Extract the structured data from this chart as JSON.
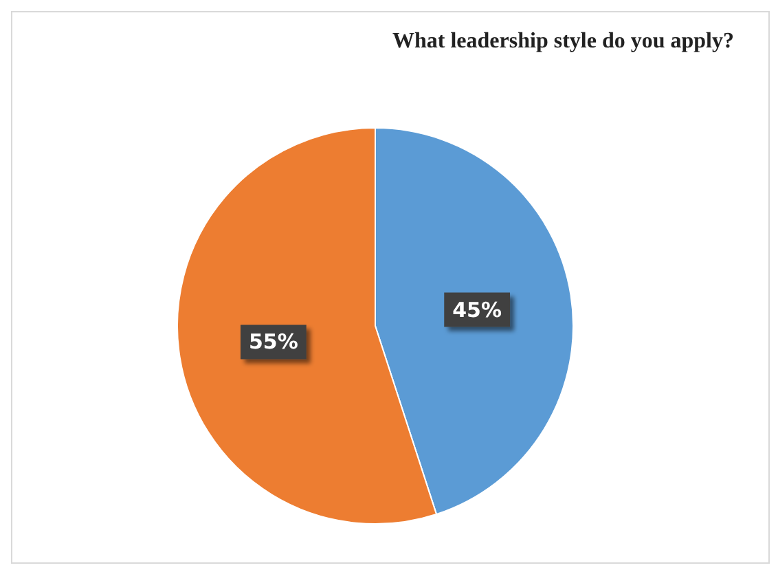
{
  "chart_data": {
    "type": "pie",
    "title": "What leadership style do you apply?",
    "categories": [
      null,
      null
    ],
    "values": [
      45,
      55
    ],
    "colors": [
      "#5b9bd5",
      "#ed7d31"
    ],
    "value_labels": [
      "45%",
      "55%"
    ]
  }
}
